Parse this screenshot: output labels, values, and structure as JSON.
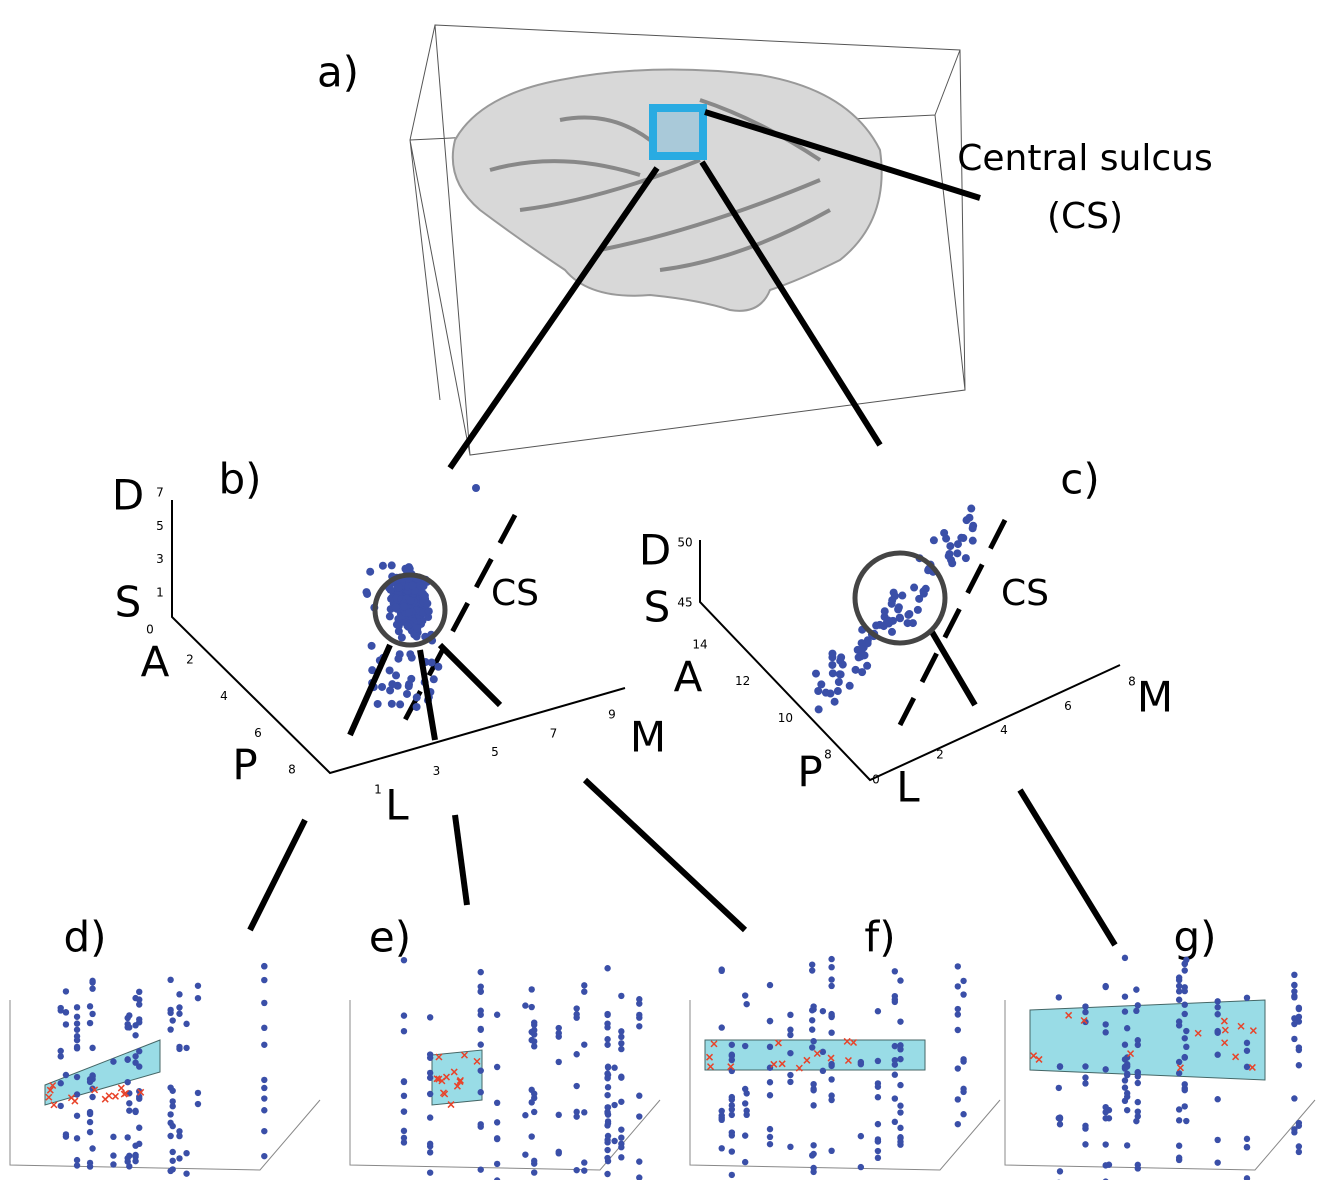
{
  "panels": {
    "a": {
      "label": "a)",
      "annotation": "Central sulcus",
      "annotation_abbrev": "(CS)"
    },
    "b": {
      "label": "b)",
      "sulcus": "CS",
      "axis_names": {
        "dorsal": "D",
        "superior": "S",
        "anterior": "A",
        "posterior": "P",
        "lateral": "L",
        "medial": "M"
      },
      "vertical_ticks": [
        "7",
        "5",
        "3",
        "1"
      ],
      "origin_tick": "0",
      "ap_ticks": [
        "2",
        "4",
        "6",
        "8"
      ],
      "lm_ticks": [
        "1",
        "3",
        "5",
        "7",
        "9"
      ]
    },
    "c": {
      "label": "c)",
      "sulcus": "CS",
      "axis_names": {
        "dorsal": "D",
        "superior": "S",
        "anterior": "A",
        "posterior": "P",
        "lateral": "L",
        "medial": "M"
      },
      "vertical_ticks": [
        "50",
        "45"
      ],
      "origin_tick": "0",
      "ap_ticks": [
        "14",
        "12",
        "10",
        "8"
      ],
      "lm_ticks": [
        "2",
        "4",
        "6",
        "8"
      ]
    },
    "d": {
      "label": "d)"
    },
    "e": {
      "label": "e)"
    },
    "f": {
      "label": "f)"
    },
    "g": {
      "label": "g)"
    }
  }
}
